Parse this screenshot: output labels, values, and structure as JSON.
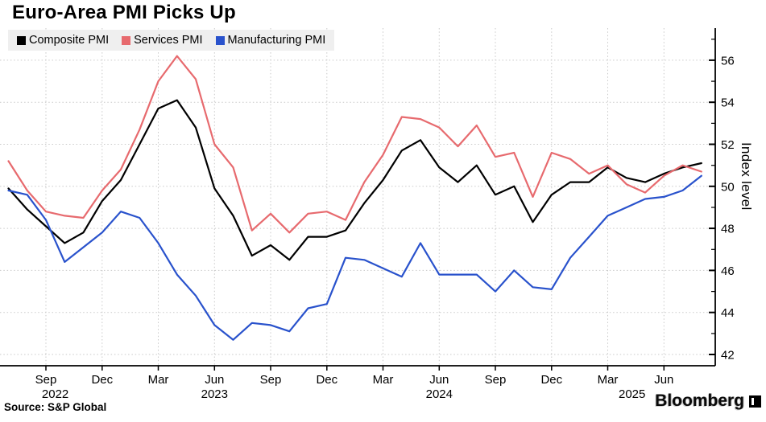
{
  "title": "Euro-Area PMI Picks Up",
  "source": "Source: S&P Global",
  "watermark": "Bloomberg",
  "chart_data": {
    "type": "line",
    "title": "Euro-Area PMI Picks Up",
    "xlabel": "",
    "ylabel": "Index level",
    "ylim": [
      41.4,
      57.5
    ],
    "grid": "dotted",
    "legend_position": "top-left",
    "legend_background": "#efefef",
    "axis_color": "#000000",
    "gridline_color": "#c9c9c9",
    "y_ticks_major": [
      42,
      44,
      46,
      48,
      50,
      52,
      54,
      56
    ],
    "y_ticks_minor": [
      43,
      45,
      47,
      49,
      51,
      53,
      55,
      57
    ],
    "x": [
      "Jul 2022",
      "Aug 2022",
      "Sep 2022",
      "Oct 2022",
      "Nov 2022",
      "Dec 2022",
      "Jan 2023",
      "Feb 2023",
      "Mar 2023",
      "Apr 2023",
      "May 2023",
      "Jun 2023",
      "Jul 2023",
      "Aug 2023",
      "Sep 2023",
      "Oct 2023",
      "Nov 2023",
      "Dec 2023",
      "Jan 2024",
      "Feb 2024",
      "Mar 2024",
      "Apr 2024",
      "May 2024",
      "Jun 2024",
      "Jul 2024",
      "Aug 2024",
      "Sep 2024",
      "Oct 2024",
      "Nov 2024",
      "Dec 2024",
      "Jan 2025",
      "Feb 2025",
      "Mar 2025",
      "Apr 2025",
      "May 2025",
      "Jun 2025",
      "Jul 2025",
      "Aug 2025"
    ],
    "x_ticks": [
      {
        "i": 2,
        "label": "Sep"
      },
      {
        "i": 5,
        "label": "Dec"
      },
      {
        "i": 8,
        "label": "Mar"
      },
      {
        "i": 11,
        "label": "Jun"
      },
      {
        "i": 14,
        "label": "Sep"
      },
      {
        "i": 17,
        "label": "Dec"
      },
      {
        "i": 20,
        "label": "Mar"
      },
      {
        "i": 23,
        "label": "Jun"
      },
      {
        "i": 26,
        "label": "Sep"
      },
      {
        "i": 29,
        "label": "Dec"
      },
      {
        "i": 32,
        "label": "Mar"
      },
      {
        "i": 35,
        "label": "Jun"
      }
    ],
    "year_ticks": [
      {
        "i": 2.5,
        "label": "2022"
      },
      {
        "i": 11,
        "label": "2023"
      },
      {
        "i": 23,
        "label": "2024"
      },
      {
        "i": 33.3,
        "label": "2025"
      }
    ],
    "series": [
      {
        "name": "Composite PMI",
        "color": "#000000",
        "values": [
          49.9,
          48.9,
          48.1,
          47.3,
          47.8,
          49.3,
          50.3,
          52.0,
          53.7,
          54.1,
          52.8,
          49.9,
          48.6,
          46.7,
          47.2,
          46.5,
          47.6,
          47.6,
          47.9,
          49.2,
          50.3,
          51.7,
          52.2,
          50.9,
          50.2,
          51.0,
          49.6,
          50.0,
          48.3,
          49.6,
          50.2,
          50.2,
          50.9,
          50.4,
          50.2,
          50.6,
          50.9,
          51.1
        ]
      },
      {
        "name": "Services PMI",
        "color": "#e76a6e",
        "values": [
          51.2,
          49.8,
          48.8,
          48.6,
          48.5,
          49.8,
          50.8,
          52.7,
          55.0,
          56.2,
          55.1,
          52.0,
          50.9,
          47.9,
          48.7,
          47.8,
          48.7,
          48.8,
          48.4,
          50.2,
          51.5,
          53.3,
          53.2,
          52.8,
          51.9,
          52.9,
          51.4,
          51.6,
          49.5,
          51.6,
          51.3,
          50.6,
          51.0,
          50.1,
          49.7,
          50.5,
          51.0,
          50.7
        ]
      },
      {
        "name": "Manufacturing PMI",
        "color": "#2952cc",
        "values": [
          49.8,
          49.6,
          48.4,
          46.4,
          47.1,
          47.8,
          48.8,
          48.5,
          47.3,
          45.8,
          44.8,
          43.4,
          42.7,
          43.5,
          43.4,
          43.1,
          44.2,
          44.4,
          46.6,
          46.5,
          46.1,
          45.7,
          47.3,
          45.8,
          45.8,
          45.8,
          45.0,
          46.0,
          45.2,
          45.1,
          46.6,
          47.6,
          48.6,
          49.0,
          49.4,
          49.5,
          49.8,
          50.5
        ]
      }
    ]
  }
}
